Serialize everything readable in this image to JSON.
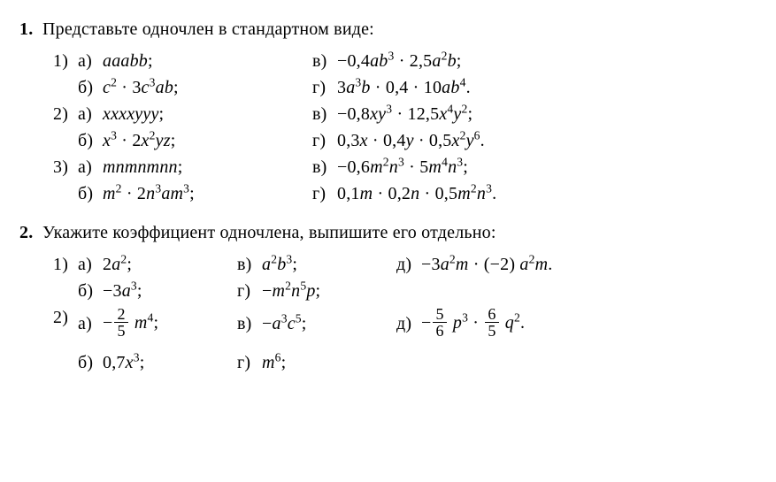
{
  "problems": [
    {
      "number": "1.",
      "text": "Представьте одночлен в стандартном виде:",
      "layout": "grid-2",
      "subs": [
        {
          "n": "1)",
          "items": [
            {
              "l": "а)",
              "f": "<span class='math'>aaabb</span>;"
            },
            {
              "l": "в)",
              "f": "<span class='rm'>−0,4</span><span class='math'>ab</span><sup>3</sup> · <span class='rm'>2,5</span><span class='math'>a</span><sup>2</sup><span class='math'>b</span>;"
            },
            {
              "l": "б)",
              "f": "<span class='math'>c</span><sup>2</sup> · <span class='rm'>3</span><span class='math'>c</span><sup>3</sup><span class='math'>ab</span>;"
            },
            {
              "l": "г)",
              "f": "<span class='rm'>3</span><span class='math'>a</span><sup>3</sup><span class='math'>b</span> · <span class='rm'>0,4</span> · <span class='rm'>10</span><span class='math'>ab</span><sup>4</sup>."
            }
          ]
        },
        {
          "n": "2)",
          "items": [
            {
              "l": "а)",
              "f": "<span class='math'>xxxxyyy</span>;"
            },
            {
              "l": "в)",
              "f": "<span class='rm'>−0,8</span><span class='math'>xy</span><sup>3</sup> · <span class='rm'>12,5</span><span class='math'>x</span><sup>4</sup><span class='math'>y</span><sup>2</sup>;"
            },
            {
              "l": "б)",
              "f": "<span class='math'>x</span><sup>3</sup> · <span class='rm'>2</span><span class='math'>x</span><sup>2</sup><span class='math'>yz</span>;"
            },
            {
              "l": "г)",
              "f": "<span class='rm'>0,3</span><span class='math'>x</span> · <span class='rm'>0,4</span><span class='math'>y</span> · <span class='rm'>0,5</span><span class='math'>x</span><sup>2</sup><span class='math'>y</span><sup>6</sup>."
            }
          ]
        },
        {
          "n": "3)",
          "items": [
            {
              "l": "а)",
              "f": "<span class='math'>mnmnmnn</span>;"
            },
            {
              "l": "в)",
              "f": "<span class='rm'>−0,6</span><span class='math'>m</span><sup>2</sup><span class='math'>n</span><sup>3</sup> · <span class='rm'>5</span><span class='math'>m</span><sup>4</sup><span class='math'>n</span><sup>3</sup>;"
            },
            {
              "l": "б)",
              "f": "<span class='math'>m</span><sup>2</sup> · <span class='rm'>2</span><span class='math'>n</span><sup>3</sup><span class='math'>am</span><sup>3</sup>;"
            },
            {
              "l": "г)",
              "f": "<span class='rm'>0,1</span><span class='math'>m</span> · <span class='rm'>0,2</span><span class='math'>n</span> · <span class='rm'>0,5</span><span class='math'>m</span><sup>2</sup><span class='math'>n</span><sup>3</sup>."
            }
          ]
        }
      ]
    },
    {
      "number": "2.",
      "text": "Укажите коэффициент одночлена, выпишите его отдельно:",
      "layout": "grid-3",
      "subs": [
        {
          "n": "1)",
          "items": [
            {
              "l": "а)",
              "f": "<span class='rm'>2</span><span class='math'>a</span><sup>2</sup>;"
            },
            {
              "l": "в)",
              "f": "<span class='math'>a</span><sup>2</sup><span class='math'>b</span><sup>3</sup>;"
            },
            {
              "l": "д)",
              "f": "<span class='rm'>−3</span><span class='math'>a</span><sup>2</sup><span class='math'>m</span> · (<span class='rm'>−2</span>)&nbsp;<span class='math'>a</span><sup>2</sup><span class='math'>m</span>."
            },
            {
              "l": "б)",
              "f": "<span class='rm'>−3</span><span class='math'>a</span><sup>3</sup>;"
            },
            {
              "l": "г)",
              "f": "<span class='rm'>−</span><span class='math'>m</span><sup>2</sup><span class='math'>n</span><sup>5</sup><span class='math'>p</span>;"
            },
            {
              "l": "",
              "f": ""
            }
          ]
        },
        {
          "n": "2)",
          "tall": true,
          "items": [
            {
              "l": "а)",
              "f": "<span class='rm'>−</span><span class='frac'><span class='fn'>2</span><span class='fd'>5</span></span>&nbsp;<span class='math'>m</span><sup>4</sup>;"
            },
            {
              "l": "в)",
              "f": "<span class='rm'>−</span><span class='math'>a</span><sup>3</sup><span class='math'>c</span><sup>5</sup>;"
            },
            {
              "l": "д)",
              "f": "<span class='rm'>−</span><span class='frac'><span class='fn'>5</span><span class='fd'>6</span></span>&nbsp;<span class='math'>p</span><sup>3</sup> · <span class='frac'><span class='fn'>6</span><span class='fd'>5</span></span>&nbsp;<span class='math'>q</span><sup>2</sup>."
            },
            {
              "l": "б)",
              "f": "<span class='rm'>0,7</span><span class='math'>x</span><sup>3</sup>;"
            },
            {
              "l": "г)",
              "f": "<span class='math'>m</span><sup>6</sup>;"
            },
            {
              "l": "",
              "f": ""
            }
          ]
        }
      ]
    }
  ]
}
